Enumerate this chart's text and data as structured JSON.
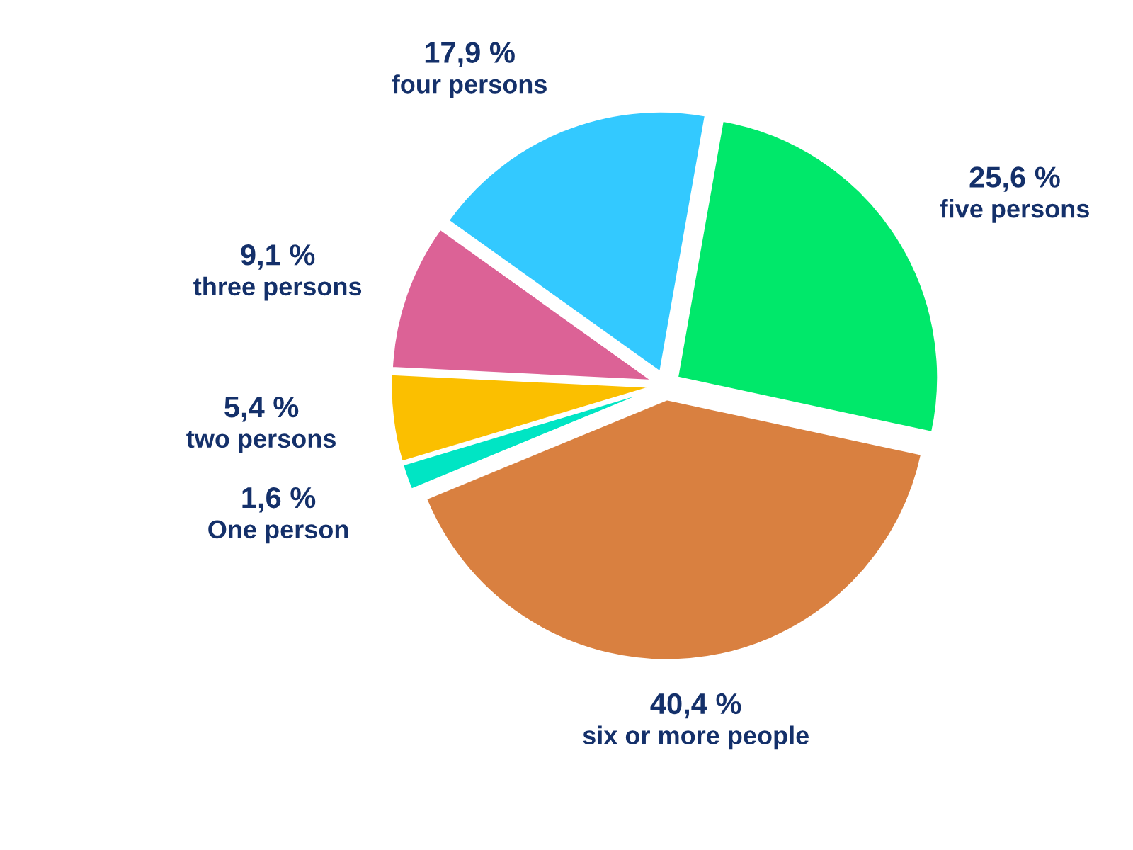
{
  "chart_data": {
    "type": "pie",
    "categories": [
      "five persons",
      "six or more people",
      "One person",
      "two persons",
      "three persons",
      "four persons"
    ],
    "values": [
      25.6,
      40.4,
      1.6,
      5.4,
      9.1,
      17.9
    ],
    "colors": [
      "#00e86a",
      "#d98040",
      "#00e5c4",
      "#fbbf00",
      "#dc6296",
      "#33c9ff"
    ],
    "value_labels": [
      "25,6 %",
      "40,4 %",
      "1,6 %",
      "5,4 %",
      "9,1 %",
      "17,9 %"
    ]
  }
}
